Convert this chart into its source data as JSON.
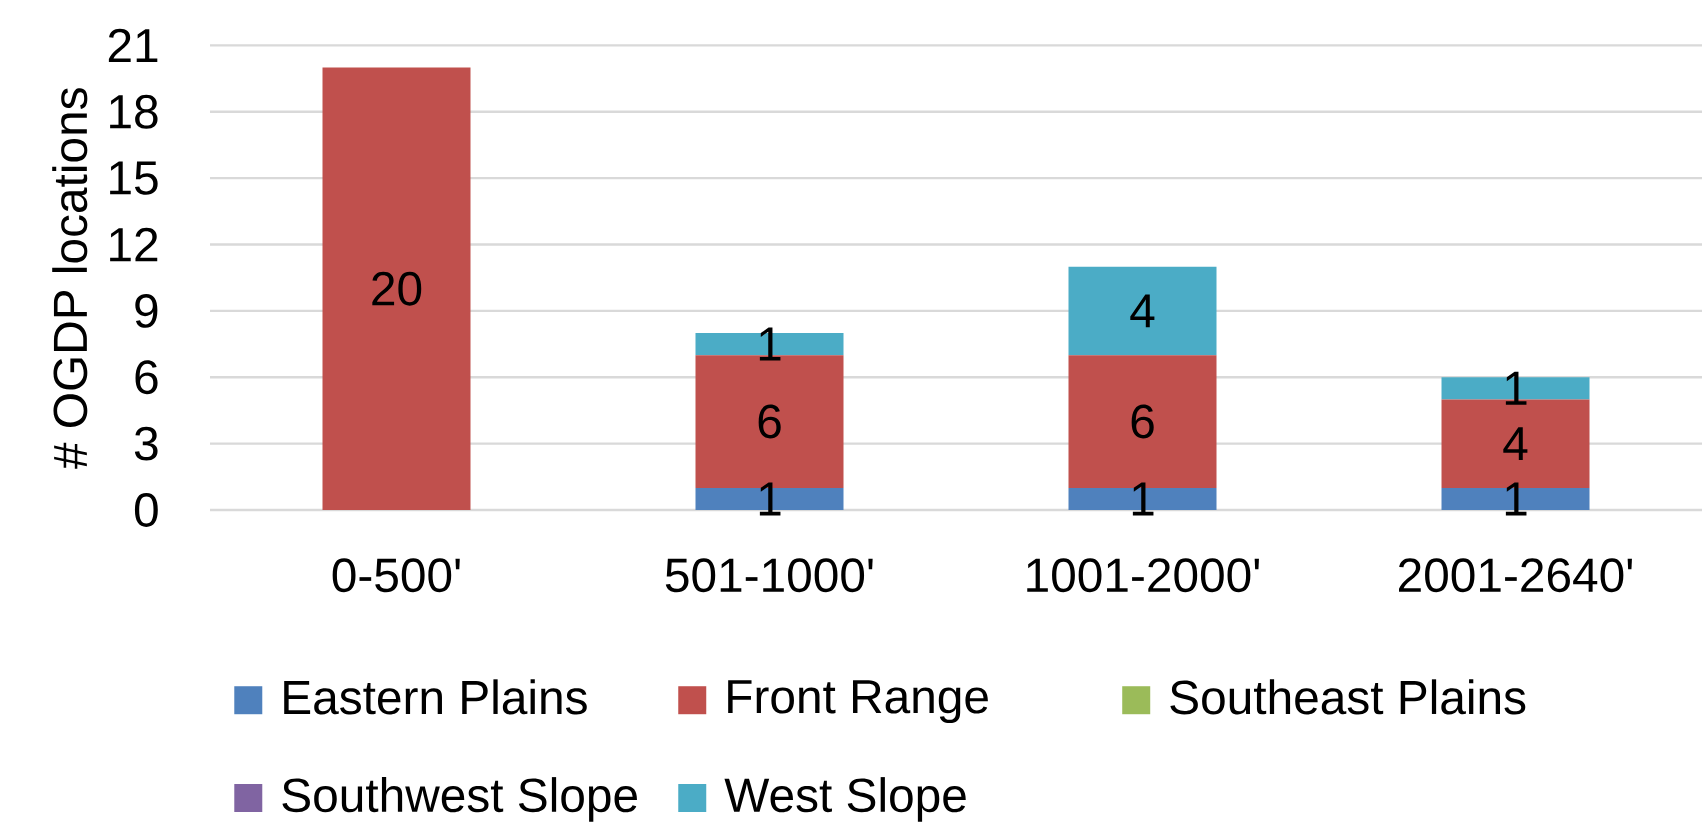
{
  "chart_data": {
    "type": "bar",
    "stacked": true,
    "categories": [
      "0-500'",
      "501-1000'",
      "1001-2000'",
      "2001-2640'"
    ],
    "ylabel": "# OGDP locations",
    "ylim": [
      0,
      21
    ],
    "yticks": [
      0,
      3,
      6,
      9,
      12,
      15,
      18,
      21
    ],
    "grid": "y",
    "legend": "bottom",
    "series": [
      {
        "name": "Eastern Plains",
        "color": "#4f81bd",
        "values": [
          0,
          1,
          1,
          1
        ],
        "value_labels": [
          null,
          "1",
          "1",
          "1"
        ]
      },
      {
        "name": "Front Range",
        "color": "#c0504d",
        "values": [
          20,
          6,
          6,
          4
        ],
        "value_labels": [
          "20",
          "6",
          "6",
          "4"
        ]
      },
      {
        "name": "Southeast Plains",
        "color": "#9bbb59",
        "values": [
          0,
          0,
          0,
          0
        ],
        "value_labels": [
          null,
          null,
          null,
          null
        ]
      },
      {
        "name": "Southwest Slope",
        "color": "#8064a2",
        "values": [
          0,
          0,
          0,
          0
        ],
        "value_labels": [
          null,
          null,
          null,
          null
        ]
      },
      {
        "name": "West Slope",
        "color": "#4bacc6",
        "values": [
          0,
          1,
          4,
          1
        ],
        "value_labels": [
          null,
          "1",
          "4",
          "1"
        ]
      }
    ]
  }
}
